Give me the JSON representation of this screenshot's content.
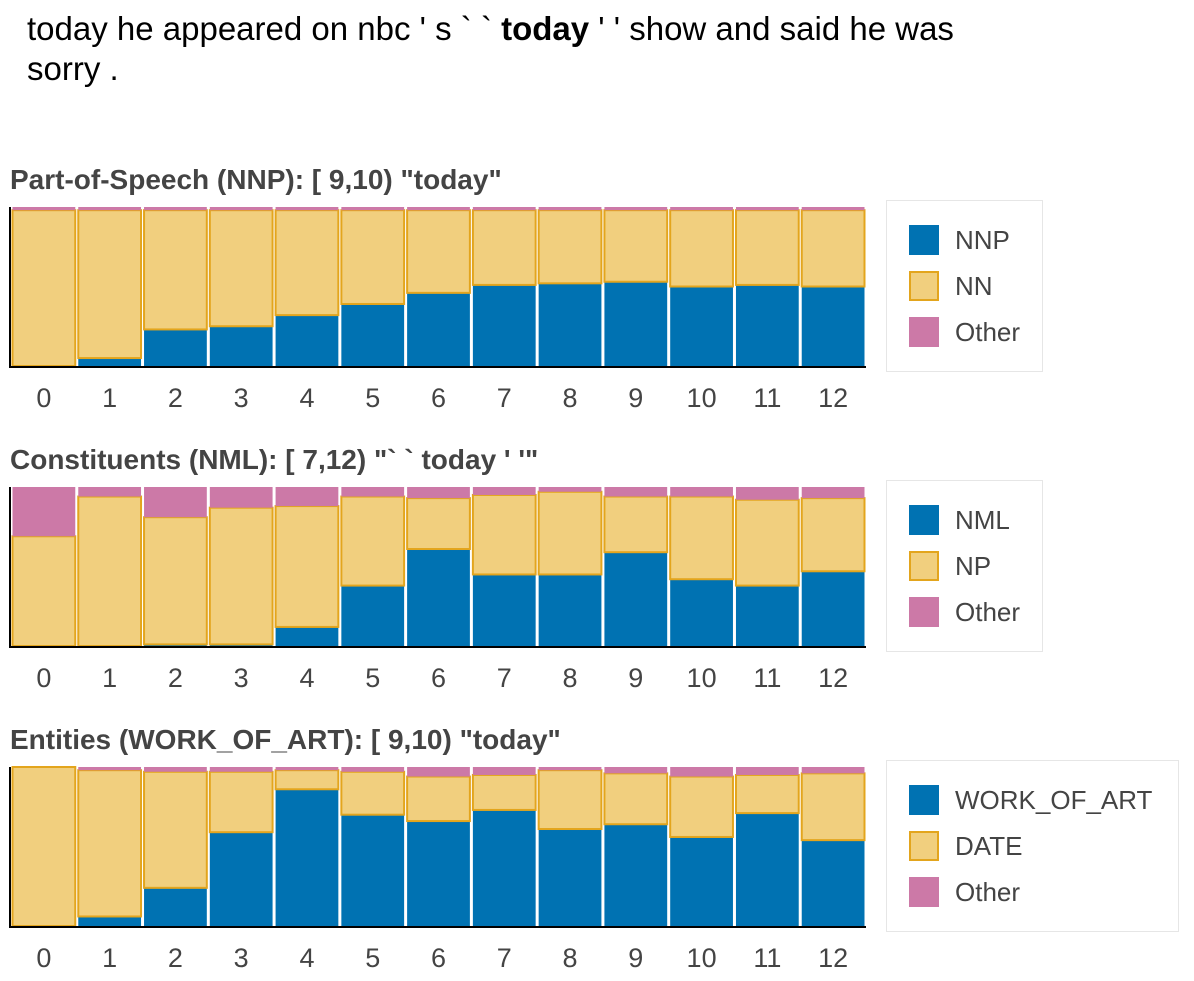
{
  "sentence": {
    "before": "today he appeared on nbc ' s ` ` ",
    "highlight": "today",
    "after": " ' ' show and said he was sorry ."
  },
  "colors": {
    "blue": "#0072b2",
    "tan": "#f1cf7e",
    "tan_border": "#e3a51d",
    "pink": "#cc79a7"
  },
  "chart_data": [
    {
      "type": "bar",
      "stacked": true,
      "title": "Part-of-Speech (NNP): [ 9,10) \"today\"",
      "categories": [
        "0",
        "1",
        "2",
        "3",
        "4",
        "5",
        "6",
        "7",
        "8",
        "9",
        "10",
        "11",
        "12"
      ],
      "ylim": [
        0,
        1
      ],
      "series": [
        {
          "name": "NNP",
          "color": "#0072b2",
          "values": [
            0.0,
            0.05,
            0.23,
            0.25,
            0.32,
            0.39,
            0.46,
            0.51,
            0.52,
            0.53,
            0.5,
            0.51,
            0.5
          ]
        },
        {
          "name": "NN",
          "color": "#f1cf7e",
          "values": [
            0.98,
            0.93,
            0.75,
            0.73,
            0.66,
            0.59,
            0.52,
            0.47,
            0.46,
            0.45,
            0.48,
            0.47,
            0.48
          ]
        },
        {
          "name": "Other",
          "color": "#cc79a7",
          "values": [
            0.02,
            0.02,
            0.02,
            0.02,
            0.02,
            0.02,
            0.02,
            0.02,
            0.02,
            0.02,
            0.02,
            0.02,
            0.02
          ]
        }
      ],
      "legend": "right"
    },
    {
      "type": "bar",
      "stacked": true,
      "title": "Constituents (NML): [ 7,12) \"` ` today ' '\"",
      "categories": [
        "0",
        "1",
        "2",
        "3",
        "4",
        "5",
        "6",
        "7",
        "8",
        "9",
        "10",
        "11",
        "12"
      ],
      "ylim": [
        0,
        1
      ],
      "series": [
        {
          "name": "NML",
          "color": "#0072b2",
          "values": [
            0.0,
            0.0,
            0.01,
            0.01,
            0.12,
            0.38,
            0.61,
            0.45,
            0.45,
            0.59,
            0.42,
            0.38,
            0.47
          ]
        },
        {
          "name": "NP",
          "color": "#f1cf7e",
          "values": [
            0.69,
            0.94,
            0.8,
            0.86,
            0.76,
            0.56,
            0.32,
            0.5,
            0.52,
            0.35,
            0.52,
            0.54,
            0.46
          ]
        },
        {
          "name": "Other",
          "color": "#cc79a7",
          "values": [
            0.31,
            0.06,
            0.19,
            0.13,
            0.12,
            0.06,
            0.07,
            0.05,
            0.03,
            0.06,
            0.06,
            0.08,
            0.07
          ]
        }
      ],
      "legend": "right"
    },
    {
      "type": "bar",
      "stacked": true,
      "title": "Entities (WORK_OF_ART): [ 9,10) \"today\"",
      "categories": [
        "0",
        "1",
        "2",
        "3",
        "4",
        "5",
        "6",
        "7",
        "8",
        "9",
        "10",
        "11",
        "12"
      ],
      "ylim": [
        0,
        1
      ],
      "series": [
        {
          "name": "WORK_OF_ART",
          "color": "#0072b2",
          "values": [
            0.0,
            0.06,
            0.24,
            0.59,
            0.86,
            0.7,
            0.66,
            0.73,
            0.61,
            0.64,
            0.56,
            0.71,
            0.54
          ]
        },
        {
          "name": "DATE",
          "color": "#f1cf7e",
          "values": [
            1.0,
            0.92,
            0.73,
            0.38,
            0.12,
            0.27,
            0.28,
            0.22,
            0.37,
            0.32,
            0.38,
            0.24,
            0.42
          ]
        },
        {
          "name": "Other",
          "color": "#cc79a7",
          "values": [
            0.0,
            0.02,
            0.03,
            0.03,
            0.02,
            0.03,
            0.06,
            0.05,
            0.02,
            0.04,
            0.06,
            0.05,
            0.04
          ]
        }
      ],
      "legend": "right"
    }
  ]
}
